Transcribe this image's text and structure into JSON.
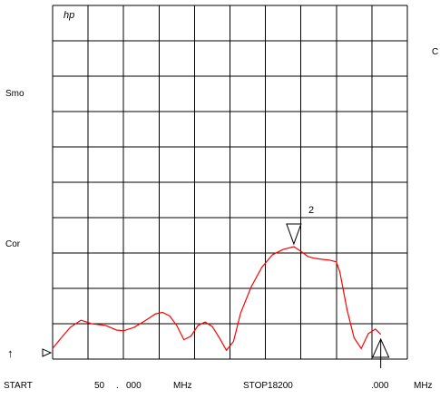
{
  "logo": "hp",
  "left_labels": {
    "smo": "Smo",
    "cor": "Cor"
  },
  "right_label": "C",
  "ref_arrow": "↑",
  "marker": {
    "number": "2"
  },
  "footer": {
    "start_label": "START",
    "start_value_int": "50",
    "start_value_dot": ".",
    "start_value_frac": "000",
    "start_unit": "MHz",
    "stop_label": "STOP18200",
    "stop_value_frac": ".000",
    "stop_unit": "MHz"
  },
  "colors": {
    "trace": "#ff0000",
    "grid": "#000000",
    "background": "#ffffff"
  },
  "chart_data": {
    "type": "line",
    "title": "",
    "xlabel": "",
    "ylabel": "",
    "grid": true,
    "x_start": "START 50.000 MHz",
    "x_stop": "STOP 18200.000 MHz",
    "divisions": {
      "x": 10,
      "y": 10
    },
    "series": [
      {
        "values_fraction_of_span_and_divisions": [
          [
            0.0,
            0.3
          ],
          [
            0.02,
            0.55
          ],
          [
            0.05,
            0.9
          ],
          [
            0.08,
            1.1
          ],
          [
            0.11,
            1.0
          ],
          [
            0.15,
            0.95
          ],
          [
            0.18,
            0.82
          ],
          [
            0.2,
            0.8
          ],
          [
            0.23,
            0.9
          ],
          [
            0.26,
            1.08
          ],
          [
            0.29,
            1.28
          ],
          [
            0.31,
            1.32
          ],
          [
            0.33,
            1.22
          ],
          [
            0.35,
            0.95
          ],
          [
            0.37,
            0.55
          ],
          [
            0.39,
            0.65
          ],
          [
            0.41,
            0.95
          ],
          [
            0.43,
            1.05
          ],
          [
            0.45,
            0.92
          ],
          [
            0.47,
            0.6
          ],
          [
            0.49,
            0.25
          ],
          [
            0.51,
            0.5
          ],
          [
            0.53,
            1.3
          ],
          [
            0.56,
            2.05
          ],
          [
            0.59,
            2.6
          ],
          [
            0.62,
            2.95
          ],
          [
            0.65,
            3.1
          ],
          [
            0.68,
            3.18
          ],
          [
            0.7,
            3.05
          ],
          [
            0.72,
            2.9
          ],
          [
            0.74,
            2.85
          ],
          [
            0.76,
            2.82
          ],
          [
            0.78,
            2.8
          ],
          [
            0.8,
            2.75
          ],
          [
            0.81,
            2.45
          ],
          [
            0.83,
            1.4
          ],
          [
            0.85,
            0.6
          ],
          [
            0.87,
            0.3
          ],
          [
            0.89,
            0.72
          ],
          [
            0.91,
            0.85
          ],
          [
            0.925,
            0.7
          ]
        ]
      }
    ],
    "markers": [
      {
        "number": "2",
        "x_fraction": 0.68,
        "symbol": "down-triangle"
      },
      {
        "number": "",
        "x_fraction": 0.925,
        "symbol": "up-triangle"
      }
    ]
  }
}
